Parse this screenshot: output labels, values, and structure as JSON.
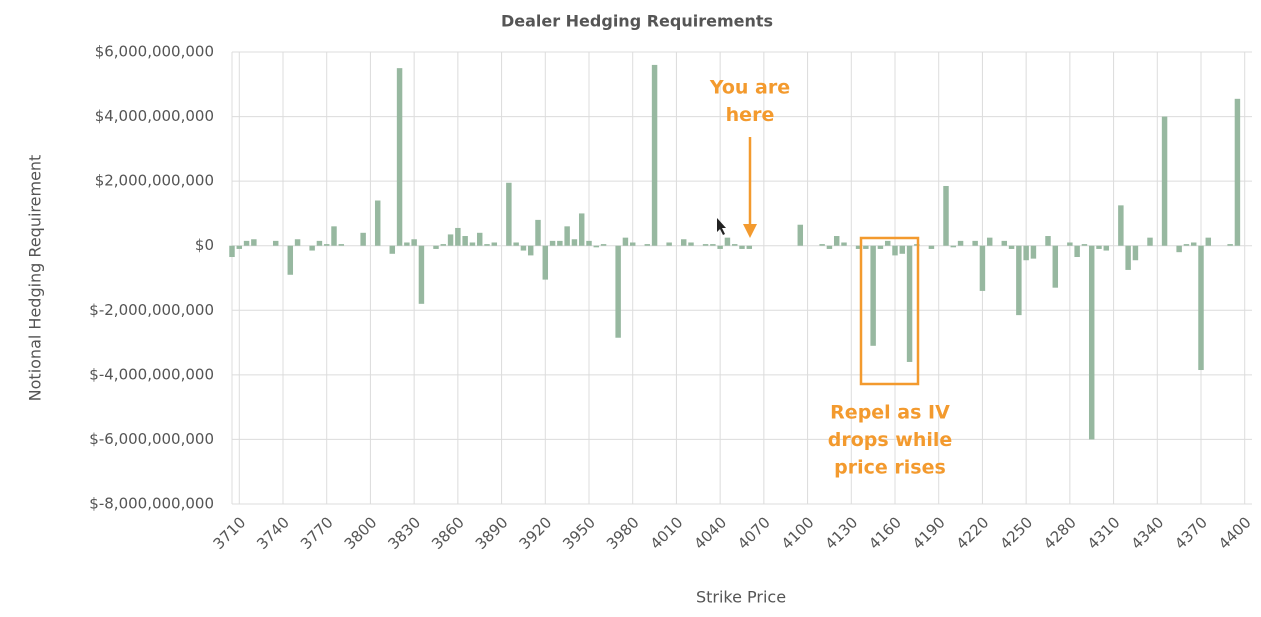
{
  "chart_data": {
    "type": "bar",
    "title": "Dealer Hedging Requirements",
    "x_label": "Strike Price",
    "y_label": "Notional Hedging Requirement",
    "color": "#97b8a0",
    "grid": true,
    "xlim": [
      3705,
      4405
    ],
    "ylim": [
      -8000000000,
      6000000000
    ],
    "xticks": [
      3710,
      3740,
      3770,
      3800,
      3830,
      3860,
      3890,
      3920,
      3950,
      3980,
      4010,
      4040,
      4070,
      4100,
      4130,
      4160,
      4190,
      4220,
      4250,
      4280,
      4310,
      4340,
      4370,
      4400
    ],
    "yticks": [
      {
        "value": -8000000000,
        "label": "$-8,000,000,000"
      },
      {
        "value": -6000000000,
        "label": "$-6,000,000,000"
      },
      {
        "value": -4000000000,
        "label": "$-4,000,000,000"
      },
      {
        "value": -2000000000,
        "label": "$-2,000,000,000"
      },
      {
        "value": 0,
        "label": "$0"
      },
      {
        "value": 2000000000,
        "label": "$2,000,000,000"
      },
      {
        "value": 4000000000,
        "label": "$4,000,000,000"
      },
      {
        "value": 6000000000,
        "label": "$6,000,000,000"
      }
    ],
    "x": [
      3705,
      3710,
      3715,
      3720,
      3735,
      3745,
      3750,
      3760,
      3765,
      3770,
      3775,
      3780,
      3795,
      3805,
      3815,
      3820,
      3825,
      3830,
      3835,
      3845,
      3850,
      3855,
      3860,
      3865,
      3870,
      3875,
      3880,
      3885,
      3895,
      3900,
      3905,
      3910,
      3915,
      3920,
      3925,
      3930,
      3935,
      3940,
      3945,
      3950,
      3955,
      3960,
      3970,
      3975,
      3980,
      3990,
      3995,
      4005,
      4015,
      4020,
      4030,
      4035,
      4040,
      4045,
      4050,
      4055,
      4060,
      4095,
      4110,
      4115,
      4120,
      4125,
      4135,
      4140,
      4145,
      4150,
      4155,
      4160,
      4165,
      4170,
      4175,
      4185,
      4195,
      4200,
      4205,
      4215,
      4220,
      4225,
      4235,
      4240,
      4245,
      4250,
      4255,
      4265,
      4270,
      4280,
      4285,
      4290,
      4295,
      4300,
      4305,
      4315,
      4320,
      4325,
      4335,
      4345,
      4355,
      4360,
      4365,
      4370,
      4375,
      4390,
      4395
    ],
    "values": [
      -350000000,
      -100000000,
      150000000,
      200000000,
      150000000,
      -900000000,
      200000000,
      -150000000,
      150000000,
      50000000,
      600000000,
      50000000,
      400000000,
      1400000000,
      -250000000,
      5500000000,
      100000000,
      200000000,
      -1800000000,
      -100000000,
      50000000,
      350000000,
      550000000,
      300000000,
      100000000,
      400000000,
      50000000,
      100000000,
      1950000000,
      100000000,
      -150000000,
      -300000000,
      800000000,
      -1050000000,
      150000000,
      150000000,
      600000000,
      200000000,
      1000000000,
      150000000,
      -50000000,
      50000000,
      -2850000000,
      250000000,
      100000000,
      50000000,
      5600000000,
      100000000,
      200000000,
      100000000,
      50000000,
      50000000,
      -100000000,
      250000000,
      50000000,
      -100000000,
      -100000000,
      650000000,
      50000000,
      -100000000,
      300000000,
      100000000,
      -100000000,
      -100000000,
      -3100000000,
      -100000000,
      150000000,
      -300000000,
      -250000000,
      -3600000000,
      50000000,
      -100000000,
      1850000000,
      -50000000,
      150000000,
      150000000,
      -1400000000,
      250000000,
      150000000,
      -100000000,
      -2150000000,
      -450000000,
      -400000000,
      300000000,
      -1300000000,
      100000000,
      -350000000,
      50000000,
      -6000000000,
      -100000000,
      -150000000,
      1250000000,
      -750000000,
      -450000000,
      250000000,
      4000000000,
      -200000000,
      50000000,
      100000000,
      -3850000000,
      250000000,
      50000000,
      4550000000
    ],
    "annotations": [
      {
        "lines": [
          "You are",
          "here"
        ],
        "color": "#f39a2e"
      },
      {
        "lines": [
          "Repel as IV",
          "drops while",
          "price rises"
        ],
        "color": "#f39a2e"
      }
    ]
  }
}
